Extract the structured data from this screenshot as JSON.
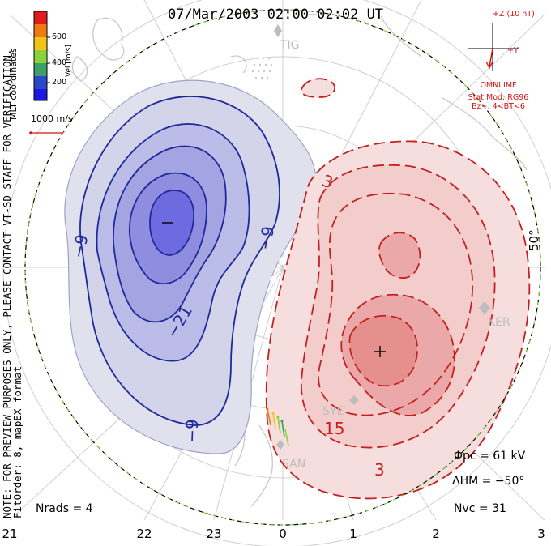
{
  "title": "07/Mar/2003 02:00–02:02 UT",
  "side_note": {
    "line1": "NOTE: FOR PREVIEW PURPOSES ONLY, PLEASE CONTACT VT-SD STAFF FOR VERIFICATION.",
    "line2": "FitOrder: 8, mapEX format"
  },
  "coords_label": "MLT coordinates",
  "colorbar": {
    "title": "Vel [m/s]",
    "ticks": [
      "600",
      "400",
      "200"
    ],
    "colors": [
      "#e11b1b",
      "#f07a10",
      "#f2c418",
      "#8ad23a",
      "#3e9e6a",
      "#2a48c9",
      "#1c19e0"
    ]
  },
  "vector_scale": "1000 m/s",
  "imf_panel": {
    "bz_label": "+Z (10 nT)",
    "by_label": "+Y",
    "source": "OMNI IMF",
    "model": "Stat Mod: RG96",
    "condition": "Bz−, 4<BT<6"
  },
  "stats": {
    "phi_pc": "Φpc = 61 kV",
    "lambda_hm": "ΛHM = −50°",
    "n_vc": "Nvc = 31",
    "n_rads": "Nrads = 4"
  },
  "latitude_label": "50°",
  "mlt_ticks": [
    "21",
    "22",
    "23",
    "0",
    "1",
    "2",
    "3"
  ],
  "sites": [
    "TIG",
    "KER",
    "SYE",
    "SAN"
  ],
  "contour_labels": {
    "neg_outer_left": "−9",
    "neg_outer_right": "−9",
    "neg_inner": "−21",
    "neg_bottom": "−9",
    "pos_top": "3",
    "pos_inner": "15",
    "pos_bottom": "3"
  },
  "extrema_marks": {
    "minimum": "−",
    "maximum": "+"
  },
  "colors": {
    "negative_line": "#1f2a9a",
    "positive_line": "#c52020",
    "boundary_dash": "#7ed23f",
    "grid": "#cfcfcf",
    "coast": "#c9c9c9"
  }
}
